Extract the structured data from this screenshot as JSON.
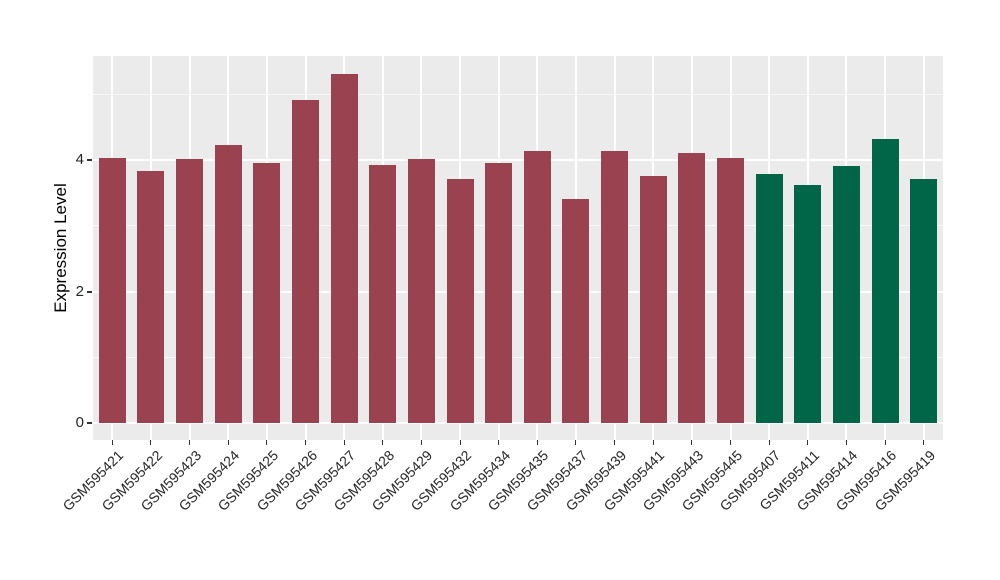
{
  "figure": {
    "background": "#ffffff"
  },
  "chart_data": {
    "type": "bar",
    "title": "",
    "xlabel": "",
    "ylabel": "Expression Level",
    "ylim": [
      -0.26,
      5.58
    ],
    "yticks": [
      0,
      2,
      4
    ],
    "ytick_labels": [
      "0",
      "2",
      "4"
    ],
    "minor_gridlines": [
      1,
      3,
      5
    ],
    "grid": "on",
    "legend": "none",
    "plot_background": "#EBEBEB",
    "gridline_color": "#FFFFFF",
    "tick_mark_color": "#333333",
    "axis_text_color": "#262626",
    "palette": {
      "maroon": "#9B4251",
      "green": "#006647"
    },
    "categories": [
      "GSM595421",
      "GSM595422",
      "GSM595423",
      "GSM595424",
      "GSM595425",
      "GSM595426",
      "GSM595427",
      "GSM595428",
      "GSM595429",
      "GSM595432",
      "GSM595434",
      "GSM595435",
      "GSM595437",
      "GSM595439",
      "GSM595441",
      "GSM595443",
      "GSM595445",
      "GSM595407",
      "GSM595411",
      "GSM595414",
      "GSM595416",
      "GSM595419"
    ],
    "values": [
      4.03,
      3.83,
      4.01,
      4.23,
      3.96,
      4.91,
      5.31,
      3.92,
      4.01,
      3.71,
      3.96,
      4.14,
      3.4,
      4.14,
      3.76,
      4.1,
      4.03,
      3.79,
      3.62,
      3.91,
      4.32,
      3.71
    ],
    "groups": [
      "maroon",
      "maroon",
      "maroon",
      "maroon",
      "maroon",
      "maroon",
      "maroon",
      "maroon",
      "maroon",
      "maroon",
      "maroon",
      "maroon",
      "maroon",
      "maroon",
      "maroon",
      "maroon",
      "maroon",
      "green",
      "green",
      "green",
      "green",
      "green"
    ]
  }
}
